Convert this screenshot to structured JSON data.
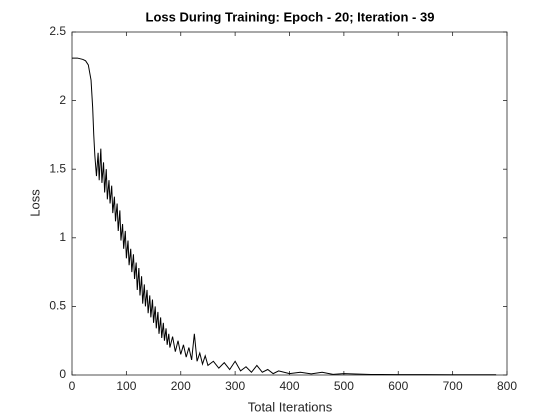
{
  "chart_data": {
    "type": "line",
    "title": "Loss During Training: Epoch - 20; Iteration - 39",
    "xlabel": "Total Iterations",
    "ylabel": "Loss",
    "xlim": [
      0,
      800
    ],
    "ylim": [
      0,
      2.5
    ],
    "xticks": [
      0,
      100,
      200,
      300,
      400,
      500,
      600,
      700,
      800
    ],
    "yticks": [
      0,
      0.5,
      1,
      1.5,
      2,
      2.5
    ],
    "x": [
      0,
      10,
      20,
      25,
      30,
      35,
      38,
      40,
      42,
      45,
      48,
      50,
      53,
      55,
      58,
      60,
      63,
      65,
      68,
      70,
      73,
      75,
      78,
      80,
      83,
      85,
      88,
      90,
      93,
      95,
      98,
      100,
      103,
      105,
      108,
      110,
      113,
      115,
      118,
      120,
      123,
      125,
      128,
      130,
      133,
      135,
      138,
      140,
      143,
      145,
      148,
      150,
      153,
      155,
      158,
      160,
      163,
      165,
      168,
      170,
      173,
      175,
      178,
      180,
      185,
      190,
      195,
      200,
      205,
      210,
      215,
      220,
      225,
      230,
      235,
      240,
      245,
      250,
      260,
      270,
      280,
      290,
      300,
      310,
      320,
      330,
      340,
      350,
      360,
      370,
      380,
      400,
      420,
      440,
      460,
      480,
      500,
      550,
      600,
      650,
      700,
      750,
      780
    ],
    "series": [
      {
        "name": "Loss",
        "color": "#000000",
        "values": [
          2.31,
          2.31,
          2.3,
          2.29,
          2.26,
          2.15,
          1.95,
          1.75,
          1.6,
          1.45,
          1.62,
          1.42,
          1.65,
          1.4,
          1.55,
          1.33,
          1.5,
          1.28,
          1.42,
          1.25,
          1.38,
          1.18,
          1.3,
          1.12,
          1.25,
          1.05,
          1.2,
          0.98,
          1.1,
          0.92,
          1.05,
          0.85,
          0.98,
          0.8,
          0.92,
          0.75,
          0.88,
          0.7,
          0.82,
          0.62,
          0.78,
          0.58,
          0.72,
          0.52,
          0.66,
          0.5,
          0.62,
          0.45,
          0.58,
          0.42,
          0.55,
          0.38,
          0.5,
          0.34,
          0.46,
          0.3,
          0.42,
          0.27,
          0.38,
          0.25,
          0.34,
          0.22,
          0.3,
          0.2,
          0.28,
          0.17,
          0.25,
          0.15,
          0.22,
          0.13,
          0.2,
          0.11,
          0.3,
          0.1,
          0.16,
          0.08,
          0.14,
          0.07,
          0.1,
          0.05,
          0.09,
          0.04,
          0.1,
          0.03,
          0.06,
          0.02,
          0.07,
          0.02,
          0.04,
          0.01,
          0.03,
          0.01,
          0.02,
          0.008,
          0.02,
          0.005,
          0.01,
          0.004,
          0.003,
          0.003,
          0.002,
          0.002,
          0.002
        ]
      }
    ]
  }
}
